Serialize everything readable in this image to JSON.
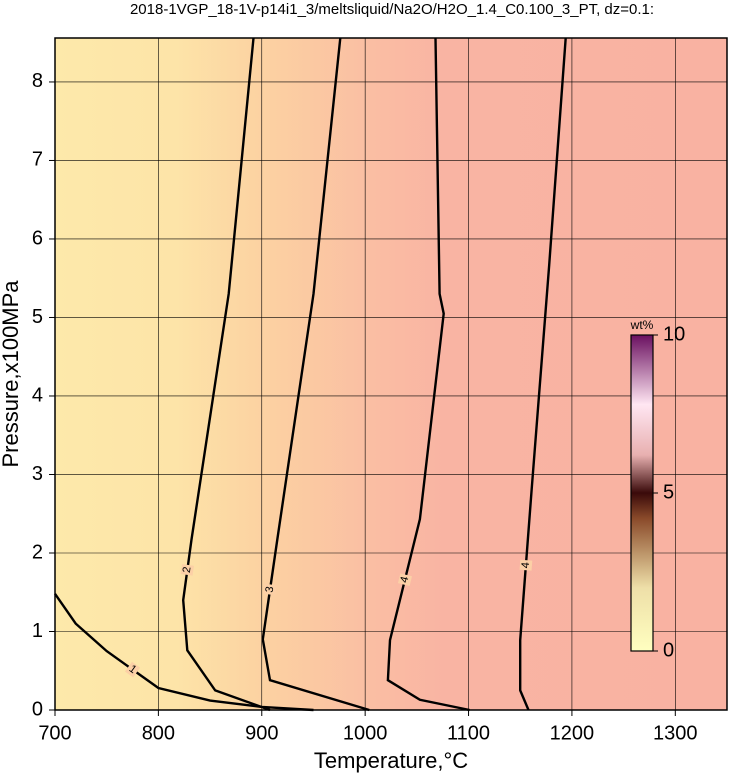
{
  "chart_data": {
    "type": "contour",
    "title": "2018-1VGP_18-1V-p14i1_3/meltsliquid/Na2O/H2O_1.4_C0.100_3_PT, dz=0.1:",
    "x_label": "Temperature,°C",
    "y_label": "Pressure,x100MPa",
    "xlim": [
      700,
      1350
    ],
    "ylim": [
      0,
      8.56
    ],
    "xticks": [
      700,
      800,
      900,
      1000,
      1100,
      1200,
      1300
    ],
    "yticks": [
      0,
      1,
      2,
      3,
      4,
      5,
      6,
      7,
      8
    ],
    "grid": true,
    "contours": [
      {
        "label": "1",
        "x": [
          700,
          720,
          750,
          800,
          850,
          900,
          950
        ],
        "y": [
          1.48,
          1.1,
          0.75,
          0.28,
          0.12,
          0.04,
          0
        ]
      },
      {
        "label": "2",
        "x": [
          892,
          868,
          832,
          824,
          828,
          855,
          908
        ],
        "y": [
          8.56,
          5.3,
          2.17,
          1.4,
          0.76,
          0.25,
          0
        ]
      },
      {
        "label": "3",
        "x": [
          976,
          950,
          915,
          901,
          908,
          1004
        ],
        "y": [
          8.56,
          5.3,
          2.17,
          0.9,
          0.38,
          0
        ]
      },
      {
        "label": "4",
        "x": [
          1068,
          1072,
          1076,
          1053,
          1024,
          1022,
          1053,
          1101
        ],
        "y": [
          8.56,
          5.3,
          5.05,
          2.43,
          0.89,
          0.38,
          0.13,
          0
        ]
      },
      {
        "label": "4",
        "x": [
          1194,
          1178,
          1161,
          1150,
          1150,
          1158
        ],
        "y": [
          8.56,
          5.67,
          2.8,
          0.89,
          0.25,
          0
        ]
      }
    ],
    "colorbar": {
      "label": "wt%",
      "lim": [
        0,
        10
      ],
      "ticks": [
        0,
        5,
        10
      ]
    }
  }
}
